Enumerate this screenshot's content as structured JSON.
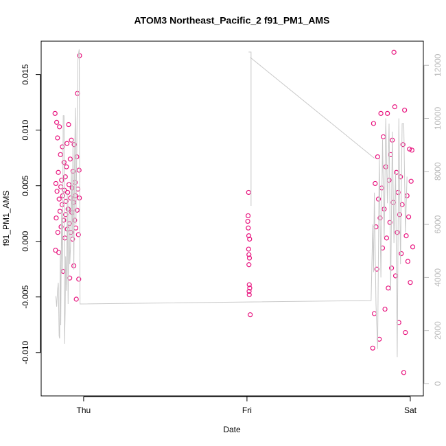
{
  "chart_data": {
    "type": "scatter",
    "title": "ATOM3 Northeast_Pacific_2 f91_PM1_AMS",
    "x_label": "Date",
    "y_label": "f91_PM1_AMS",
    "xlim": [
      -0.26,
      2.08
    ],
    "xticks": [
      {
        "value": 0,
        "label": "Thu"
      },
      {
        "value": 1,
        "label": "Fri"
      },
      {
        "value": 2,
        "label": "Sat"
      }
    ],
    "ylim": [
      -0.0139,
      0.018
    ],
    "yticks": [
      {
        "value": -0.01,
        "label": "-0.010"
      },
      {
        "value": -0.005,
        "label": "-0.005"
      },
      {
        "value": 0,
        "label": "0.000"
      },
      {
        "value": 0.005,
        "label": "0.005"
      },
      {
        "value": 0.01,
        "label": "0.010"
      },
      {
        "value": 0.015,
        "label": "0.015"
      }
    ],
    "y2lim": [
      -466,
      12911
    ],
    "y2ticks": [
      0,
      2000,
      4000,
      6000,
      8000,
      10000,
      12000
    ],
    "series": [
      {
        "type": "scatter",
        "color": "#e8157f",
        "x": [
          -0.175,
          -0.172,
          -0.17,
          -0.168,
          -0.165,
          -0.163,
          -0.16,
          -0.158,
          -0.155,
          -0.152,
          -0.15,
          -0.148,
          -0.145,
          -0.142,
          -0.14,
          -0.138,
          -0.135,
          -0.132,
          -0.13,
          -0.128,
          -0.125,
          -0.122,
          -0.12,
          -0.118,
          -0.115,
          -0.112,
          -0.11,
          -0.108,
          -0.105,
          -0.102,
          -0.1,
          -0.098,
          -0.095,
          -0.092,
          -0.09,
          -0.088,
          -0.085,
          -0.082,
          -0.08,
          -0.078,
          -0.075,
          -0.072,
          -0.07,
          -0.068,
          -0.065,
          -0.062,
          -0.06,
          -0.058,
          -0.055,
          -0.052,
          -0.05,
          -0.048,
          -0.045,
          -0.042,
          -0.04,
          -0.038,
          -0.035,
          -0.032,
          -0.03,
          -0.028,
          -0.026,
          -0.025,
          1.005,
          1.007,
          1.008,
          1.01,
          1.01,
          1.011,
          1.012,
          1.012,
          1.013,
          1.014,
          1.014,
          1.015,
          1.016,
          1.017,
          1.02,
          1.77,
          1.775,
          1.78,
          1.785,
          1.79,
          1.795,
          1.8,
          1.805,
          1.81,
          1.815,
          1.82,
          1.825,
          1.83,
          1.835,
          1.84,
          1.845,
          1.85,
          1.855,
          1.86,
          1.865,
          1.87,
          1.875,
          1.88,
          1.885,
          1.89,
          1.895,
          1.9,
          1.905,
          1.91,
          1.915,
          1.92,
          1.925,
          1.93,
          1.935,
          1.94,
          1.945,
          1.95,
          1.955,
          1.96,
          1.965,
          1.97,
          1.975,
          1.98,
          1.985,
          1.99,
          1.995,
          2.0,
          2.005,
          2.01,
          2.015
        ],
        "values": [
          0.0115,
          -0.0008,
          0.0052,
          0.0021,
          0.0107,
          0.0045,
          0.0093,
          0.0008,
          0.0062,
          -0.001,
          0.0038,
          0.0103,
          0.0027,
          0.0078,
          0.0049,
          0.0013,
          0.0055,
          0.0033,
          0.0085,
          0.0041,
          -0.0027,
          0.0019,
          0.0071,
          0.0046,
          0.0003,
          0.0058,
          0.0024,
          0.0036,
          0.0067,
          0.0088,
          0.0011,
          0.0044,
          0.0029,
          0.0105,
          0.0051,
          0.0016,
          -0.0033,
          0.0074,
          0.0039,
          0.0008,
          0.0091,
          0.0026,
          0.0048,
          0.0002,
          0.0063,
          0.0035,
          -0.0022,
          0.0087,
          0.0019,
          0.0053,
          0.0041,
          0.0012,
          -0.0052,
          0.0076,
          0.0028,
          0.0133,
          0.0047,
          0.0006,
          -0.0034,
          0.0064,
          0.0039,
          0.0167,
          0.0018,
          0.0023,
          0.0012,
          0.0044,
          -0.0007,
          0.0005,
          -0.0012,
          -0.0021,
          -0.0045,
          -0.0039,
          -0.0048,
          -0.0015,
          0.0002,
          -0.0042,
          -0.0066,
          -0.0096,
          0.0106,
          -0.0065,
          0.0052,
          0.0013,
          -0.0025,
          0.0076,
          0.0038,
          -0.0088,
          0.0021,
          0.0115,
          0.0048,
          -0.0006,
          0.0094,
          0.0029,
          -0.0061,
          0.0067,
          0.0003,
          0.0115,
          -0.0042,
          0.0055,
          0.0017,
          0.0078,
          -0.0024,
          0.0091,
          0.0035,
          0.017,
          0.0121,
          -0.0031,
          0.0062,
          0.0008,
          0.0044,
          -0.0073,
          0.0024,
          0.0058,
          -0.0011,
          0.0033,
          0.0087,
          -0.0118,
          0.0118,
          -0.0082,
          0.0005,
          0.0041,
          -0.0018,
          0.0022,
          0.0083,
          -0.0037,
          0.0054,
          0.0082,
          -0.0005
        ]
      },
      {
        "type": "line",
        "axis": "y2",
        "color": "#c8c8c8",
        "x": [
          -0.17,
          -0.165,
          -0.16,
          -0.155,
          -0.15,
          -0.147,
          -0.143,
          -0.14,
          -0.135,
          -0.13,
          -0.125,
          -0.12,
          -0.117,
          -0.113,
          -0.11,
          -0.105,
          -0.1,
          -0.095,
          -0.09,
          -0.085,
          -0.08,
          -0.075,
          -0.07,
          -0.065,
          -0.06,
          -0.055,
          -0.05,
          -0.047,
          -0.04,
          -0.035,
          -0.03,
          -0.027,
          -0.022,
          1.76,
          1.77,
          1.775,
          1.78,
          1.79,
          1.8,
          1.81,
          1.82,
          1.83,
          1.84,
          1.85,
          1.86,
          1.87,
          1.88,
          1.89,
          1.9,
          1.91,
          1.92,
          1.93,
          1.94,
          1.95,
          1.96,
          1.97,
          1.98,
          null,
          1.01,
          1.025,
          1.025,
          null,
          1.02,
          1.78
        ],
        "values": [
          3300,
          2900,
          3500,
          3800,
          1800,
          1700,
          5000,
          2200,
          6500,
          4200,
          10100,
          10100,
          1500,
          2700,
          4800,
          3500,
          7200,
          3000,
          6800,
          4500,
          5200,
          8000,
          5500,
          9200,
          4300,
          8700,
          10400,
          6000,
          9900,
          12200,
          12500,
          12600,
          3000,
          3130,
          6000,
          4200,
          7200,
          3000,
          1300,
          8500,
          4000,
          9200,
          5500,
          10000,
          6800,
          9800,
          3500,
          9500,
          5300,
          8000,
          1000,
          10000,
          4500,
          9800,
          9800,
          5700,
          7800,
          null,
          12500,
          12500,
          6700,
          null,
          12300,
          8500
        ]
      }
    ]
  }
}
